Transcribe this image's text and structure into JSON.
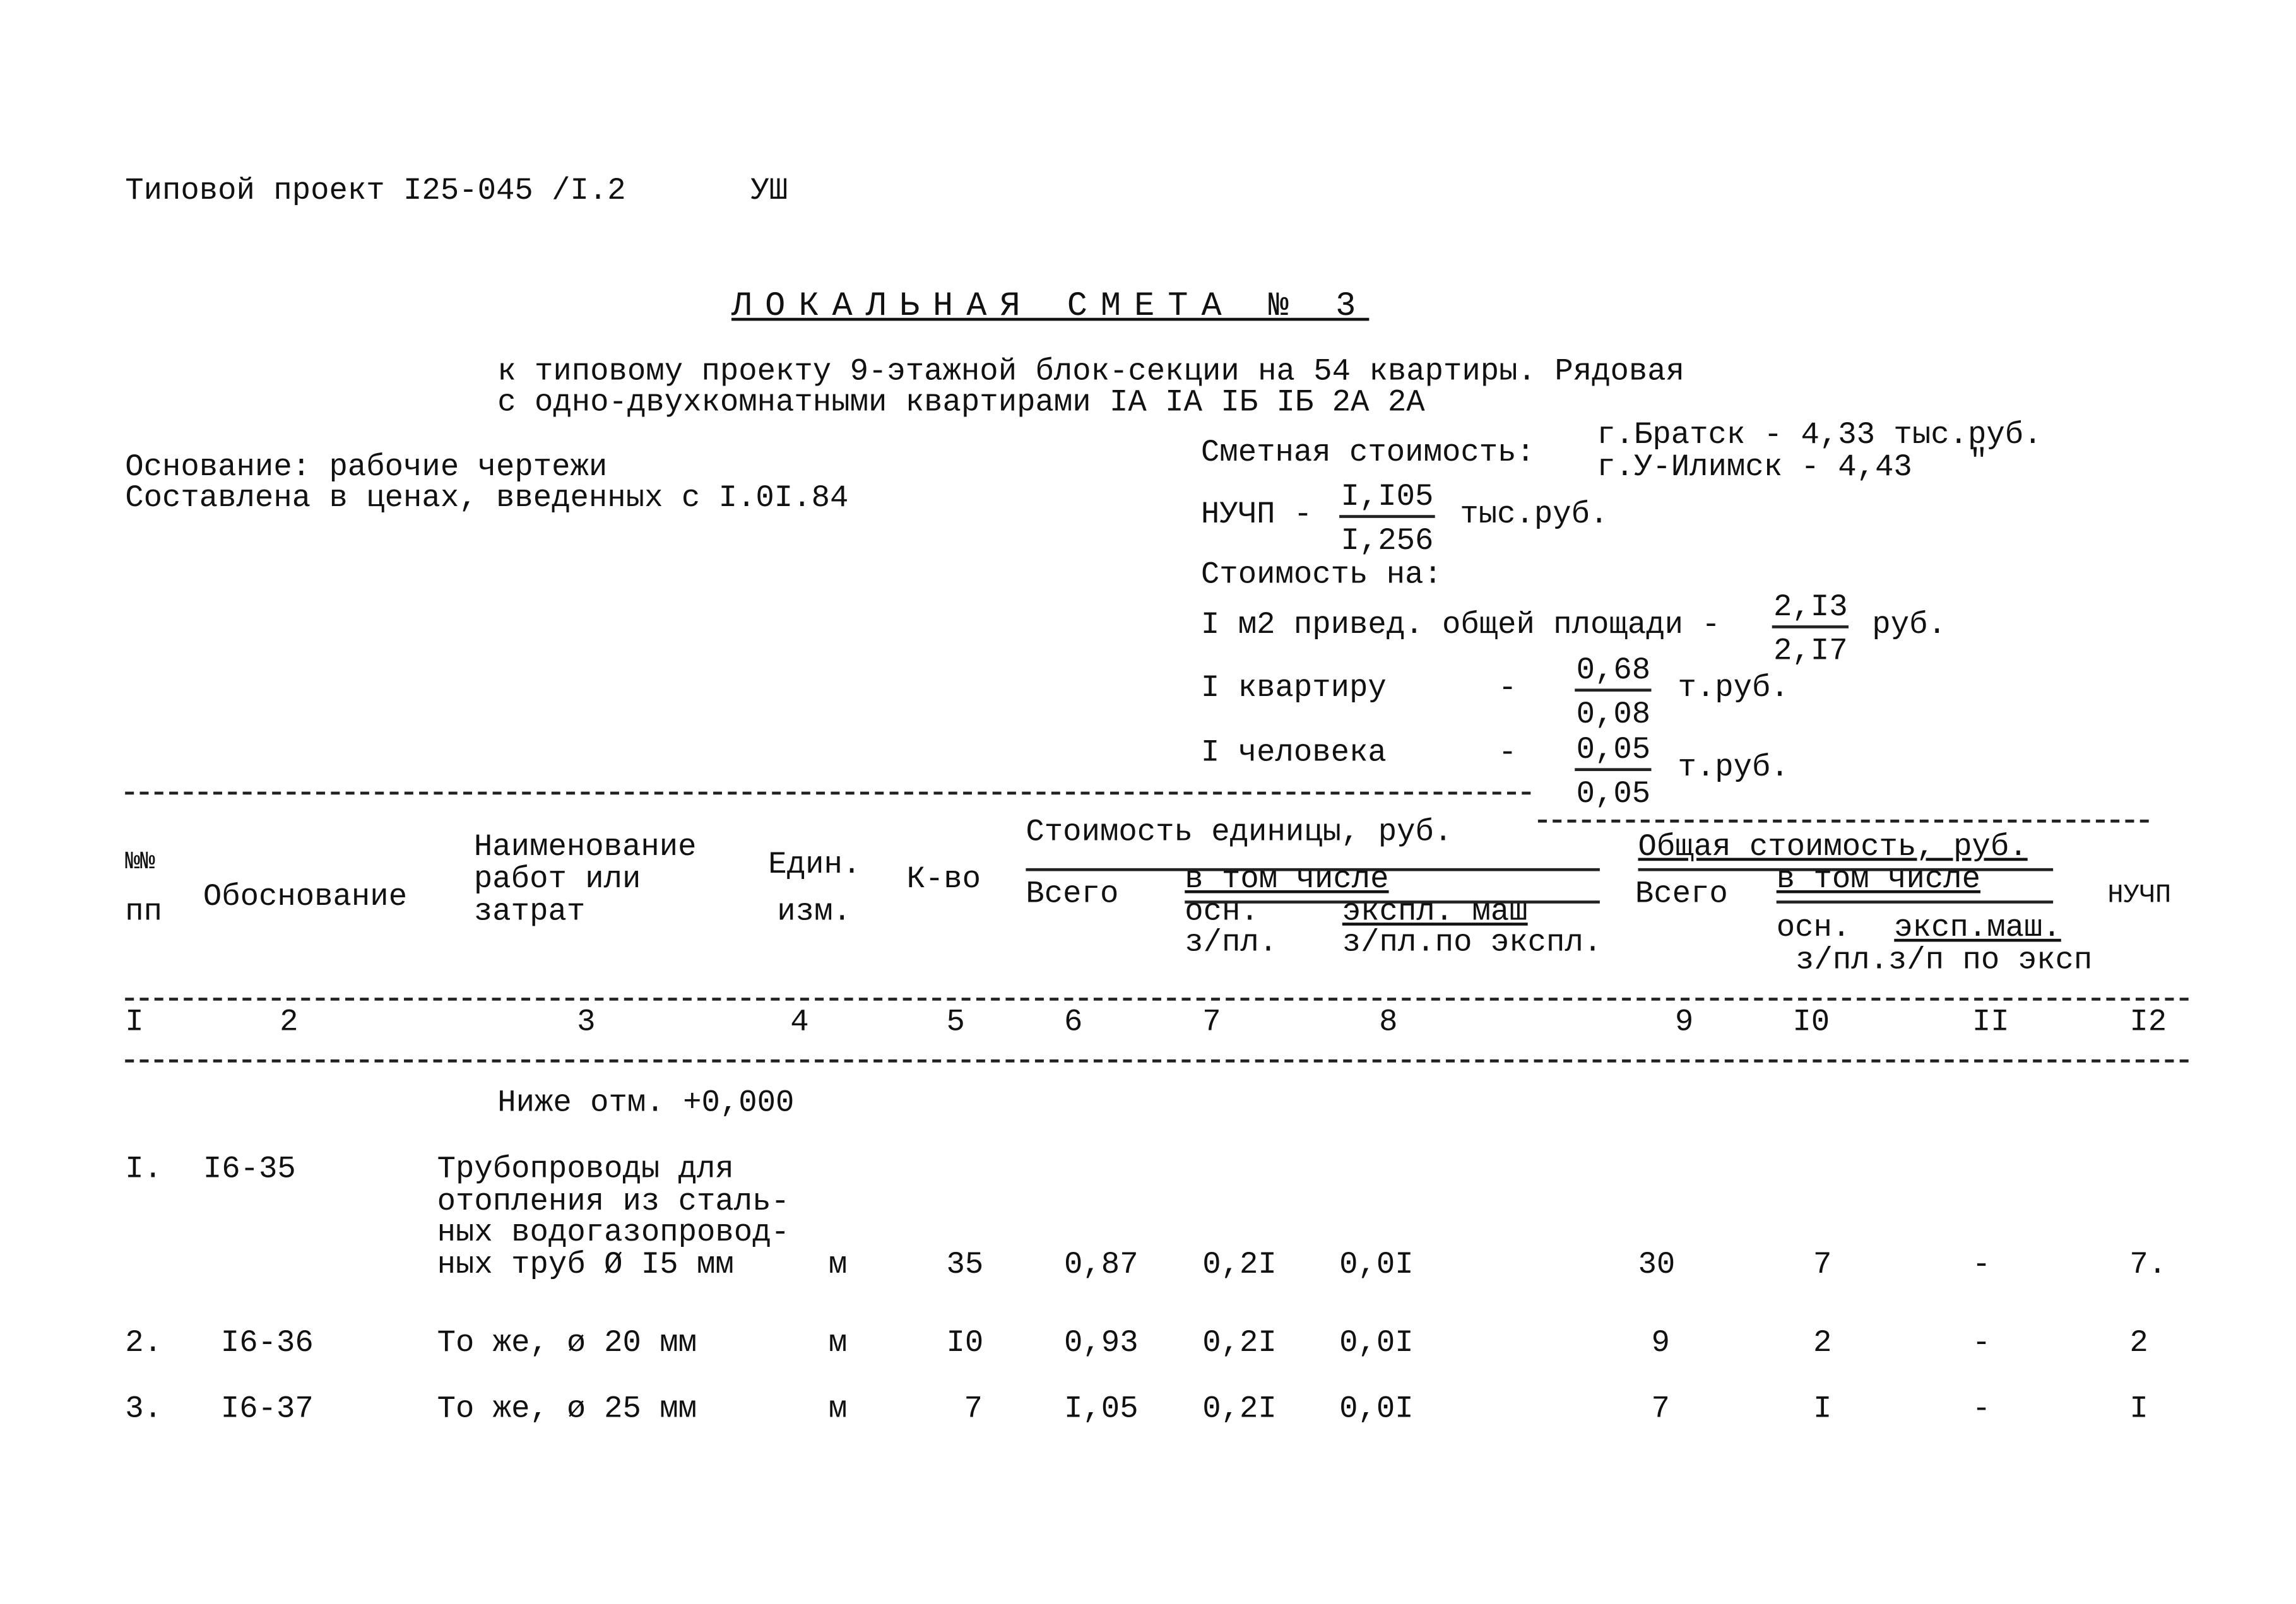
{
  "header": {
    "project": "Типовой проект I25-045 /I.2",
    "section": "УШ"
  },
  "title": "ЛОКАЛЬНАЯ СМЕТА № 3",
  "subtitle": [
    "к типовому проекту 9-этажной блок-секции на 54 квартиры. Рядовая",
    "с одно-двухкомнатными квартирами IA IA IБ IБ 2A 2A"
  ],
  "basis": [
    "Основание: рабочие чертежи",
    "Составлена в ценах, введенных с I.0I.84"
  ],
  "cost": {
    "label": "Сметная стоимость:",
    "bratsk": "г.Братск - 4,33 тыс.руб.",
    "ilimsk": "г.У-Илимск - 4,43",
    "ditto": "\"",
    "nuchp_label": "НУЧП -",
    "nuchp_num": "I,I05",
    "nuchp_den": "I,256",
    "nuchp_unit": "тыс.руб.",
    "per_label": "Стоимость на:",
    "m2_label": "I м2 привед. общей площади -",
    "m2_num": "2,I3",
    "m2_den": "2,I7",
    "m2_unit": "руб.",
    "apt_label": "I квартиру",
    "apt_dash": "-",
    "apt_num": "0,68",
    "apt_den": "0,08",
    "apt_unit": "т.руб.",
    "person_label": "I человека",
    "person_dash": "-",
    "person_num": "0,05",
    "person_den": "0,05",
    "person_unit": "т.руб."
  },
  "table": {
    "h_no": [
      "№№",
      "пп"
    ],
    "h_basis": "Обоснование",
    "h_name": [
      "Наименование",
      "работ или",
      "затрат"
    ],
    "h_unit": [
      "Един.",
      "изм."
    ],
    "h_qty": "К-во",
    "h_unit_cost": "Стоимость единицы, руб.",
    "h_total_cost": "Общая стоимость, руб.",
    "h_all": "Всего",
    "h_incl": "в том числе",
    "h_base": "осн.",
    "h_base2": "з/пл.",
    "h_mach": "экспл. маш",
    "h_mach2": "з/пл.по экспл.",
    "h_base_t": "осн.",
    "h_mach_t": "эксп.маш.",
    "h_sub_t": "з/пл.з/п по эксп",
    "h_nuchp": "НУЧП",
    "col_numbers": [
      "I",
      "2",
      "3",
      "4",
      "5",
      "6",
      "7",
      "8",
      "9",
      "I0",
      "II",
      "I2"
    ],
    "section": "Ниже отм. +0,000",
    "rows": [
      {
        "no": "I.",
        "code": "I6-35",
        "name": [
          "Трубопроводы для",
          "отопления из сталь-",
          "ных водогазопровод-",
          "ных труб Ø I5 мм"
        ],
        "unit": "м",
        "qty": "35",
        "total": "0,87",
        "base": "0,2I",
        "mach": "0,0I",
        "t_total": "30",
        "t_base": "7",
        "t_mach": "-",
        "nuchp": "7."
      },
      {
        "no": "2.",
        "code": "I6-36",
        "name": [
          "То же, ø 20 мм"
        ],
        "unit": "м",
        "qty": "I0",
        "total": "0,93",
        "base": "0,2I",
        "mach": "0,0I",
        "t_total": "9",
        "t_base": "2",
        "t_mach": "-",
        "nuchp": "2"
      },
      {
        "no": "3.",
        "code": "I6-37",
        "name": [
          "То же, ø 25 мм"
        ],
        "unit": "м",
        "qty": "7",
        "total": "I,05",
        "base": "0,2I",
        "mach": "0,0I",
        "t_total": "7",
        "t_base": "I",
        "t_mach": "-",
        "nuchp": "I"
      }
    ]
  }
}
